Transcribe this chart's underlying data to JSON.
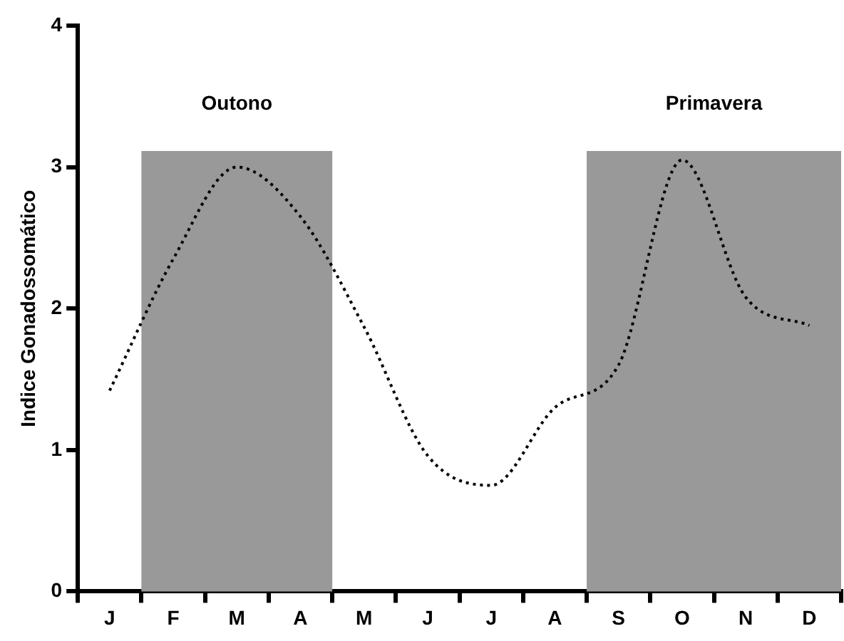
{
  "chart_data": {
    "type": "line",
    "ylabel": "Indice Gonadossomático",
    "categories": [
      "J",
      "F",
      "M",
      "A",
      "M",
      "J",
      "J",
      "A",
      "S",
      "O",
      "N",
      "D"
    ],
    "series": [
      {
        "color": "#000000",
        "values": [
          1.42,
          2.35,
          3.0,
          2.65,
          1.87,
          0.96,
          0.75,
          1.3,
          1.6,
          3.05,
          2.08,
          1.88
        ]
      }
    ],
    "ylim": [
      0,
      4
    ],
    "yticks": [
      0,
      1,
      2,
      3,
      4
    ],
    "bands": [
      {
        "axis": "x",
        "from": "F",
        "to": "A",
        "label": "Outono",
        "color": "#999999"
      },
      {
        "axis": "x",
        "from": "S",
        "to": "D",
        "label": "Primavera",
        "color": "#999999"
      }
    ],
    "grid": false,
    "legend": false,
    "marker": "none",
    "line_style": "dotted"
  }
}
